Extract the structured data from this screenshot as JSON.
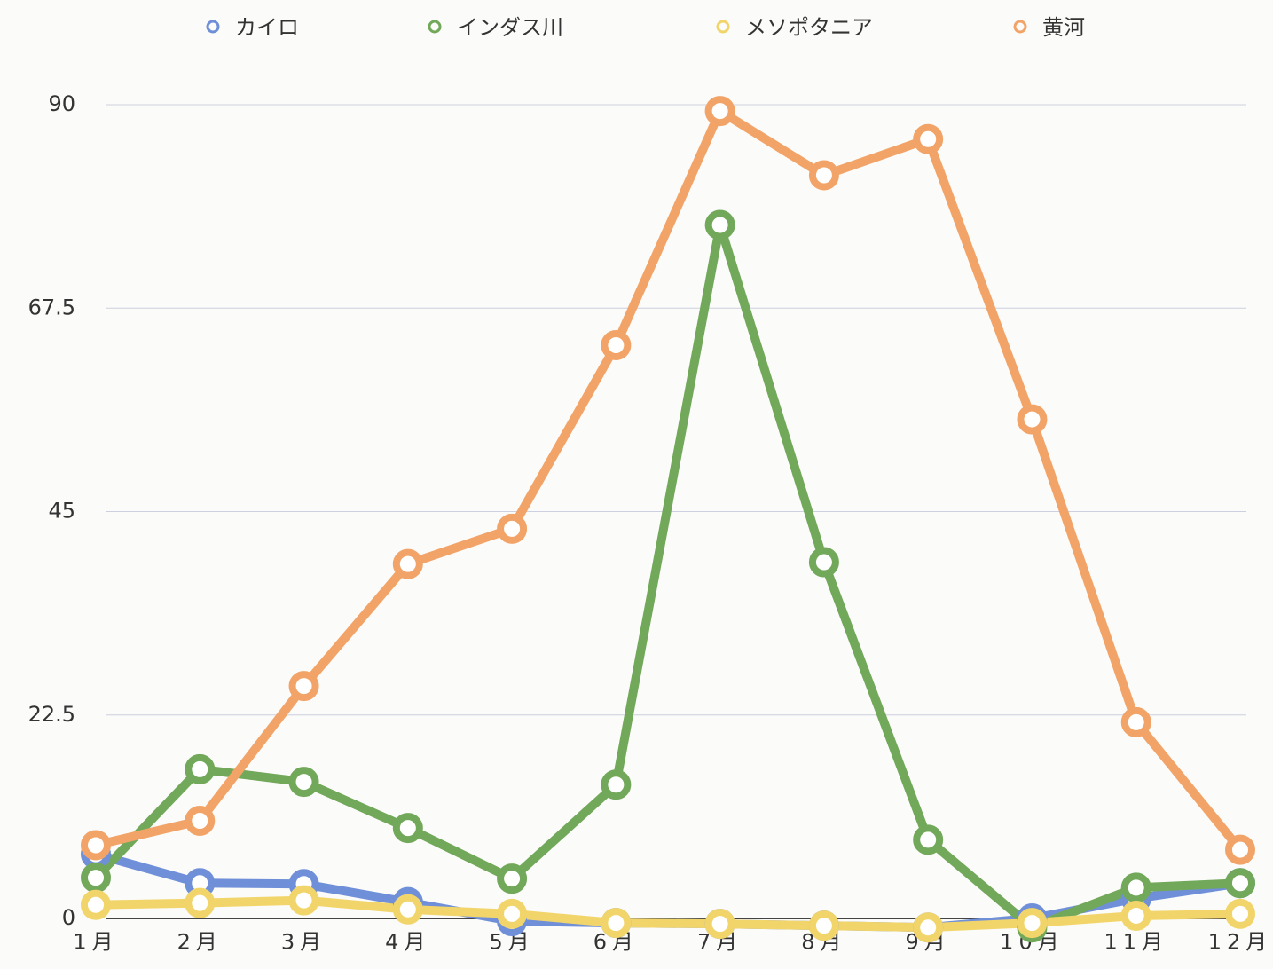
{
  "chart_data": {
    "type": "line",
    "categories": [
      "1月",
      "2月",
      "3月",
      "4月",
      "5月",
      "6月",
      "7月",
      "8月",
      "9月",
      "10月",
      "11月",
      "12月"
    ],
    "series": [
      {
        "name": "カイロ",
        "color": "#6f8fd8",
        "values": [
          7.1,
          3.9,
          3.8,
          1.8,
          -0.3,
          -0.5,
          -0.6,
          -0.8,
          -1.0,
          0,
          2.2,
          3.9
        ]
      },
      {
        "name": "インダス川",
        "color": "#72a85a",
        "values": [
          4.5,
          16.5,
          15.1,
          10.0,
          4.4,
          14.8,
          76.7,
          39.4,
          8.7,
          -1.0,
          3.4,
          3.9
        ]
      },
      {
        "name": "メソポタニア",
        "color": "#f2d56a",
        "values": [
          1.5,
          1.7,
          2.0,
          1.0,
          0.5,
          -0.5,
          -0.6,
          -0.8,
          -1.0,
          -0.5,
          0.3,
          0.5
        ]
      },
      {
        "name": "黄河",
        "color": "#f2a468",
        "values": [
          8.1,
          10.8,
          25.7,
          39.2,
          43.1,
          63.4,
          89.3,
          82.2,
          86.2,
          55.2,
          21.7,
          7.6
        ]
      }
    ],
    "ylim": [
      -1.5,
      90
    ],
    "yticks": [
      0,
      22.5,
      45,
      67.5,
      90
    ],
    "grid": true,
    "legend": "top"
  }
}
